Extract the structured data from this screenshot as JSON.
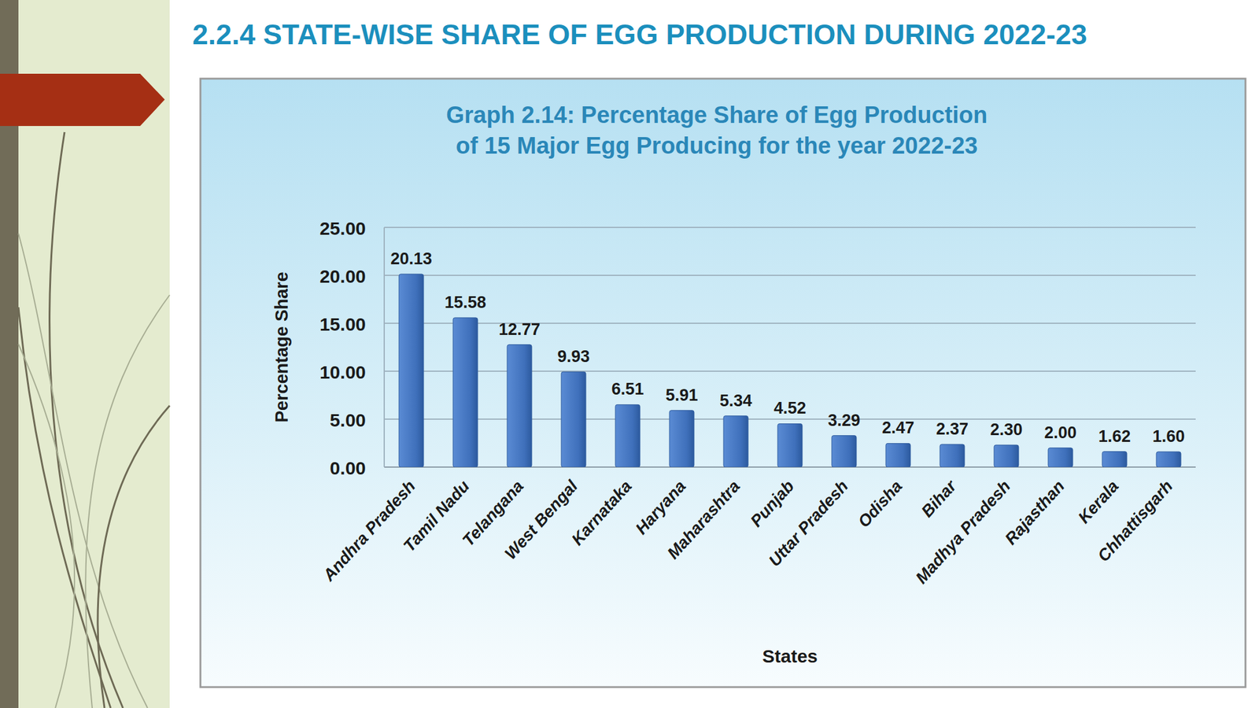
{
  "heading": "2.2.4 STATE-WISE SHARE OF EGG PRODUCTION DURING 2022-23",
  "chart_data": {
    "type": "bar",
    "title": "Graph 2.14: Percentage Share of Egg Production of 15 Major Egg Producing for the year 2022-23",
    "x_label": "States",
    "y_label": "Percentage Share",
    "categories": [
      "Andhra Pradesh",
      "Tamil Nadu",
      "Telangana",
      "West Bengal",
      "Karnataka",
      "Haryana",
      "Maharashtra",
      "Punjab",
      "Uttar Pradesh",
      "Odisha",
      "Bihar",
      "Madhya Pradesh",
      "Rajasthan",
      "Kerala",
      "Chhattisgarh"
    ],
    "values": [
      20.13,
      15.58,
      12.77,
      9.93,
      6.51,
      5.91,
      5.34,
      4.52,
      3.29,
      2.47,
      2.37,
      2.3,
      2.0,
      1.62,
      1.6
    ],
    "value_labels": [
      "20.13",
      "15.58",
      "12.77",
      "9.93",
      "6.51",
      "5.91",
      "5.34",
      "4.52",
      "3.29",
      "2.47",
      "2.37",
      "2.30",
      "2.00",
      "1.62",
      "1.60"
    ],
    "color": "#4a7cc7",
    "ylim": [
      0,
      25
    ],
    "yticks": [
      {
        "value": 0,
        "label": "0.00"
      },
      {
        "value": 5,
        "label": "5.00"
      },
      {
        "value": 10,
        "label": "10.00"
      },
      {
        "value": 15,
        "label": "15.00"
      },
      {
        "value": 20,
        "label": "20.00"
      },
      {
        "value": 25,
        "label": "25.00"
      }
    ],
    "grid": true,
    "data_labels": true
  }
}
